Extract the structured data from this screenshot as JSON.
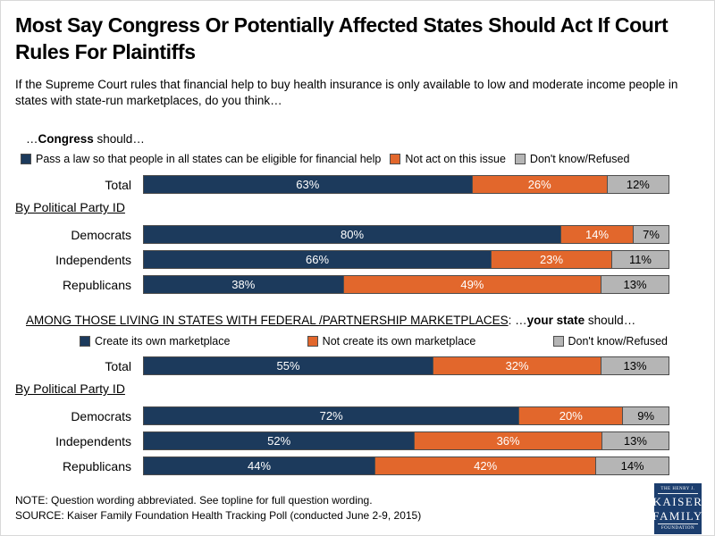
{
  "title": "Most Say Congress Or Potentially Affected States Should Act If Court Rules For Plaintiffs",
  "subtitle": "If the Supreme Court rules that financial help to buy health insurance is only available to low and moderate income people in states with state-run marketplaces, do you think…",
  "chart_data": [
    {
      "type": "bar",
      "orientation": "horizontal-stacked",
      "heading": [
        {
          "text": "…"
        },
        {
          "text": "Congress",
          "bold": true
        },
        {
          "text": " should…"
        }
      ],
      "series": [
        "Pass a law so that people in all states can be eligible for financial help",
        "Not act on this issue",
        "Don't know/Refused"
      ],
      "colors": [
        "#1c3a5c",
        "#e2672c",
        "#b5b5b5"
      ],
      "value_colors": [
        "#ffffff",
        "#ffffff",
        "#000000"
      ],
      "unit": "%",
      "group_label": "By Political Party ID",
      "rows": [
        {
          "label": "Total",
          "values": [
            63,
            26,
            12
          ],
          "group": false
        },
        {
          "label": "Democrats",
          "values": [
            80,
            14,
            7
          ],
          "group": true
        },
        {
          "label": "Independents",
          "values": [
            66,
            23,
            11
          ],
          "group": true
        },
        {
          "label": "Republicans",
          "values": [
            38,
            49,
            13
          ],
          "group": true
        }
      ]
    },
    {
      "type": "bar",
      "orientation": "horizontal-stacked",
      "heading": [
        {
          "text": "AMONG THOSE LIVING IN STATES WITH FEDERAL /PARTNERSHIP MARKETPLACES",
          "underline": true
        },
        {
          "text": ": …"
        },
        {
          "text": "your state",
          "bold": true
        },
        {
          "text": " should…"
        }
      ],
      "series": [
        "Create its own marketplace",
        "Not create its own marketplace",
        "Don't know/Refused"
      ],
      "colors": [
        "#1c3a5c",
        "#e2672c",
        "#b5b5b5"
      ],
      "value_colors": [
        "#ffffff",
        "#ffffff",
        "#000000"
      ],
      "unit": "%",
      "group_label": "By Political Party ID",
      "rows": [
        {
          "label": "Total",
          "values": [
            55,
            32,
            13
          ],
          "group": false
        },
        {
          "label": "Democrats",
          "values": [
            72,
            20,
            9
          ],
          "group": true
        },
        {
          "label": "Independents",
          "values": [
            52,
            36,
            13
          ],
          "group": true
        },
        {
          "label": "Republicans",
          "values": [
            44,
            42,
            14
          ],
          "group": true
        }
      ]
    }
  ],
  "footer": {
    "note": "NOTE: Question wording abbreviated.  See topline for full question wording.",
    "source": "SOURCE: Kaiser Family Foundation Health Tracking Poll (conducted June 2-9, 2015)"
  },
  "logo": {
    "line1": "THE HENRY J.",
    "line2": "KAISER",
    "line3": "FAMILY",
    "line4": "FOUNDATION"
  }
}
